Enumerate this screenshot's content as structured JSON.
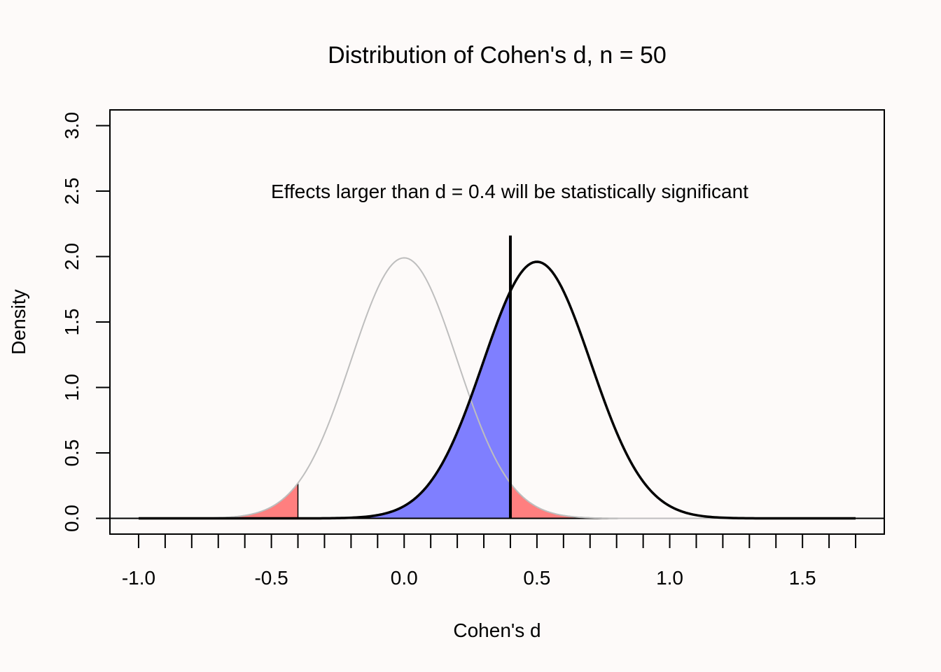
{
  "chart_data": {
    "type": "area",
    "title": "Distribution of Cohen's d, n = 50",
    "xlabel": "Cohen's d",
    "ylabel": "Density",
    "annotation": "Effects larger than d =  0.4 will be statistically significant",
    "xlim": [
      -1.0,
      1.7
    ],
    "ylim": [
      0.0,
      3.0
    ],
    "x_ticks": [
      -1.0,
      -0.5,
      0.0,
      0.5,
      1.0,
      1.5
    ],
    "x_tick_labels": [
      "-1.0",
      "-0.5",
      "0.0",
      "0.5",
      "1.0",
      "1.5"
    ],
    "x_minor_tick_step": 0.1,
    "y_ticks": [
      0.0,
      0.5,
      1.0,
      1.5,
      2.0,
      2.5,
      3.0
    ],
    "y_tick_labels": [
      "0.0",
      "0.5",
      "1.0",
      "1.5",
      "2.0",
      "2.5",
      "3.0"
    ],
    "critical_d": 0.4,
    "critical_line_height": 2.16,
    "grid": false,
    "series": [
      {
        "role": "null",
        "mean": 0.0,
        "sd": 0.2,
        "peak_density": 1.99,
        "color": "#bebebe"
      },
      {
        "role": "alternative",
        "mean": 0.5,
        "sd": 0.203,
        "peak_density": 1.96,
        "color": "#000000"
      }
    ],
    "shaded_regions": [
      {
        "role": "null-left-tail",
        "from": -1.0,
        "to": -0.4,
        "color": "#ff7f7f"
      },
      {
        "role": "null-right-tail",
        "from": 0.4,
        "to": 1.7,
        "color": "#ff7f7f"
      },
      {
        "role": "alternative-below-critical",
        "from": -1.0,
        "to": 0.4,
        "color": "#7f7fff"
      }
    ]
  }
}
